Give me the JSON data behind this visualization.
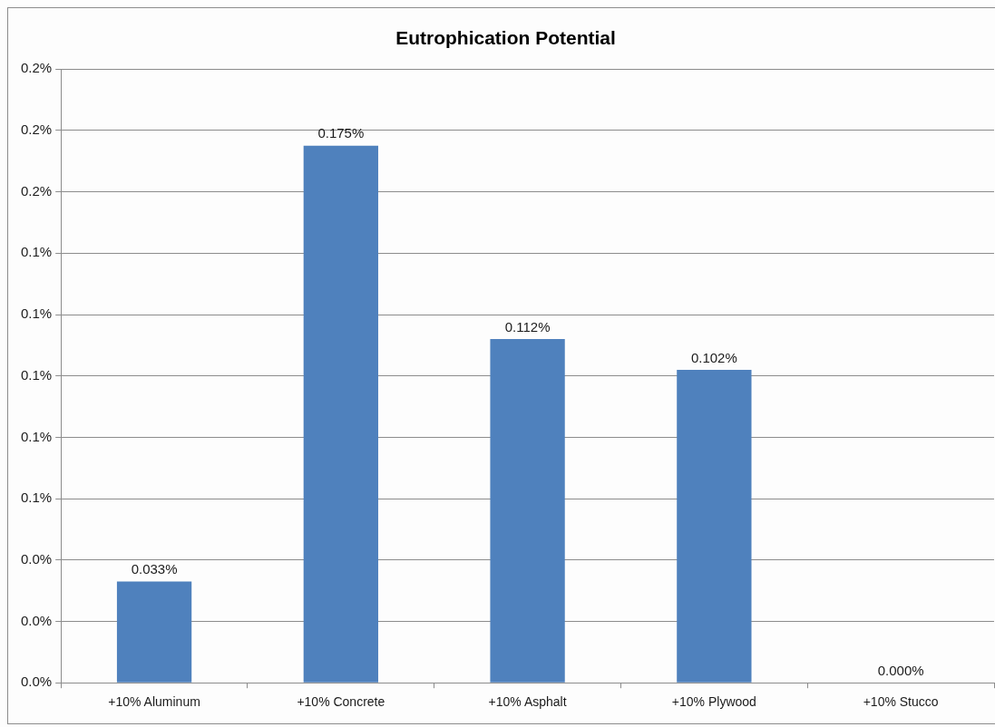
{
  "chart_data": {
    "type": "bar",
    "title": "Eutrophication Potential",
    "categories": [
      "+10% Aluminum",
      "+10% Concrete",
      "+10% Asphalt",
      "+10% Plywood",
      "+10% Stucco"
    ],
    "values": [
      0.033,
      0.175,
      0.112,
      0.102,
      0.0
    ],
    "color": "#4f81bd",
    "value_labels": [
      "0.033%",
      "0.175%",
      "0.112%",
      "0.102%",
      "0.000%"
    ],
    "ylim": [
      0,
      0.2
    ],
    "yticks": [
      {
        "value": 0,
        "label": "0.0%"
      },
      {
        "value": 0.02,
        "label": "0.0%"
      },
      {
        "value": 0.04,
        "label": "0.0%"
      },
      {
        "value": 0.06,
        "label": "0.1%"
      },
      {
        "value": 0.08,
        "label": "0.1%"
      },
      {
        "value": 0.1,
        "label": "0.1%"
      },
      {
        "value": 0.12,
        "label": "0.1%"
      },
      {
        "value": 0.14,
        "label": "0.1%"
      },
      {
        "value": 0.16,
        "label": "0.2%"
      },
      {
        "value": 0.18,
        "label": "0.2%"
      },
      {
        "value": 0.2,
        "label": "0.2%"
      }
    ],
    "grid": "y"
  }
}
